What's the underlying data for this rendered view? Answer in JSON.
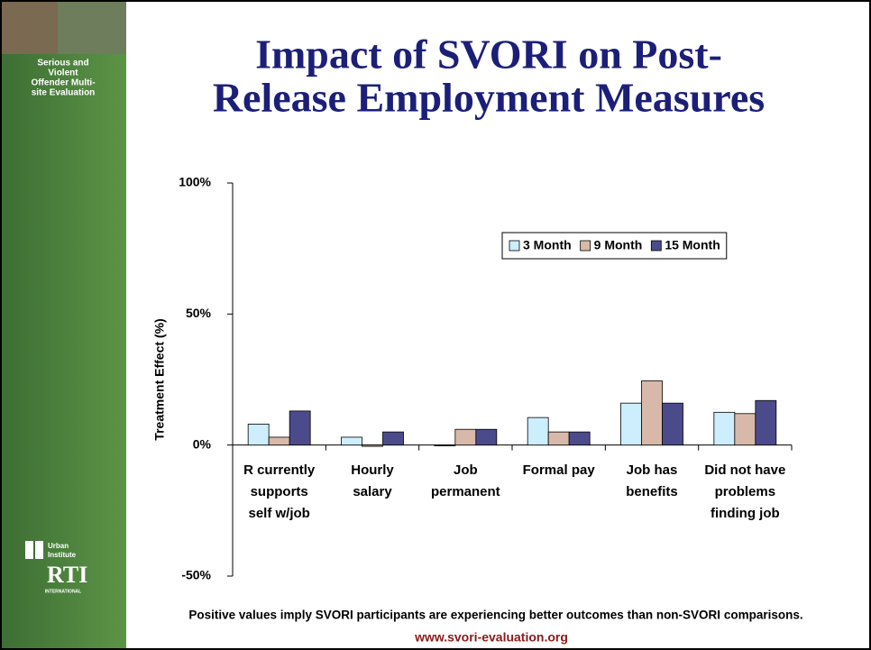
{
  "slide": {
    "title": [
      "Impact of SVORI on Post-",
      "Release Employment Measures"
    ],
    "sidebar_text": [
      "Serious and",
      "Violent",
      "Offender Multi-",
      "site Evaluation"
    ],
    "urban_logo": [
      "Urban",
      "Institute"
    ],
    "rti_logo": [
      "RTI",
      "INTERNATIONAL"
    ],
    "footnote": "Positive values imply SVORI participants are experiencing better outcomes than non-SVORI comparisons.",
    "url": "www.svori-evaluation.org"
  },
  "chart_data": {
    "type": "bar",
    "ylabel": "Treatment Effect (%)",
    "categories": [
      [
        "R currently",
        "supports",
        "self w/job"
      ],
      [
        "Hourly",
        "salary"
      ],
      [
        "Job",
        "permanent"
      ],
      [
        "Formal pay"
      ],
      [
        "Job has",
        "benefits"
      ],
      [
        "Did not have",
        "problems",
        "finding job"
      ]
    ],
    "series": [
      {
        "name": "3 Month",
        "color": "#cdeefc",
        "values": [
          8,
          3,
          -0.3,
          10.5,
          16,
          12.5
        ]
      },
      {
        "name": "9 Month",
        "color": "#d8b9a9",
        "values": [
          3,
          -0.5,
          6,
          5,
          24.5,
          12
        ]
      },
      {
        "name": "15 Month",
        "color": "#4b4b8c",
        "values": [
          13,
          5,
          6,
          5,
          16,
          17
        ]
      }
    ],
    "ylim": [
      -50,
      100
    ],
    "yticks": [
      {
        "value": -50,
        "label": "-50%"
      },
      {
        "value": 0,
        "label": "0%"
      },
      {
        "value": 50,
        "label": "50%"
      },
      {
        "value": 100,
        "label": "100%"
      }
    ],
    "legend": "upper right"
  }
}
